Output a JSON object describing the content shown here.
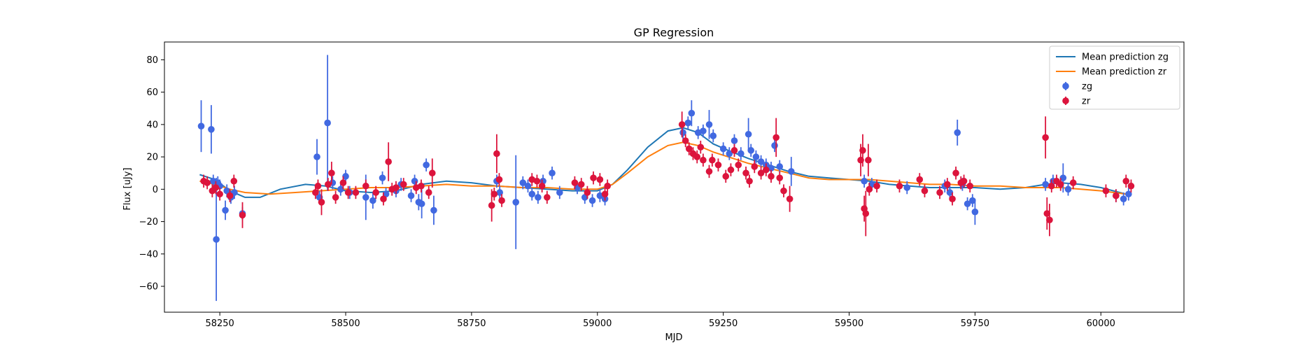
{
  "chart_data": {
    "type": "scatter",
    "title": "GP Regression",
    "xlabel": "MJD",
    "ylabel": "Flux [uJy]",
    "xlim": [
      58140,
      60165
    ],
    "ylim": [
      -76,
      91
    ],
    "xticks": [
      58250,
      58500,
      58750,
      59000,
      59250,
      59500,
      59750,
      60000
    ],
    "yticks": [
      -60,
      -40,
      -20,
      0,
      20,
      40,
      60,
      80
    ],
    "legend_position": "top-right",
    "grid": false,
    "lines": [
      {
        "name": "Mean prediction zg",
        "color": "#1f77b4",
        "x": [
          58210,
          58240,
          58270,
          58300,
          58330,
          58370,
          58420,
          58460,
          58500,
          58550,
          58600,
          58650,
          58700,
          58750,
          58800,
          58850,
          58900,
          58950,
          59000,
          59030,
          59060,
          59100,
          59140,
          59170,
          59200,
          59230,
          59260,
          59300,
          59340,
          59380,
          59420,
          59460,
          59500,
          59540,
          59580,
          59620,
          59660,
          59700,
          59750,
          59800,
          59850,
          59890,
          59920,
          59960,
          60000,
          60050
        ],
        "y": [
          9,
          6,
          -1,
          -5,
          -5,
          0,
          3,
          2,
          -1,
          -2,
          -1,
          3,
          5,
          4,
          2,
          1,
          0,
          -1,
          -1,
          3,
          12,
          26,
          36,
          38,
          35,
          28,
          24,
          19,
          15,
          11,
          8,
          7,
          6,
          5,
          3,
          2,
          1,
          1,
          1,
          0,
          1,
          3,
          4,
          3,
          1,
          -3
        ]
      },
      {
        "name": "Mean prediction zr",
        "color": "#ff7f0e",
        "x": [
          58210,
          58240,
          58270,
          58300,
          58350,
          58400,
          58450,
          58500,
          58550,
          58600,
          58650,
          58700,
          58750,
          58800,
          58850,
          58900,
          58950,
          59000,
          59030,
          59060,
          59100,
          59140,
          59170,
          59200,
          59230,
          59260,
          59300,
          59340,
          59380,
          59420,
          59460,
          59500,
          59540,
          59580,
          59620,
          59660,
          59700,
          59750,
          59800,
          59850,
          59890,
          59920,
          59960,
          60000,
          60050
        ],
        "y": [
          5,
          3,
          0,
          -2,
          -3,
          -2,
          -1,
          0,
          1,
          1,
          2,
          3,
          2,
          2,
          1,
          1,
          0,
          0,
          3,
          10,
          20,
          27,
          29,
          27,
          23,
          20,
          16,
          13,
          10,
          7,
          6,
          6,
          6,
          5,
          4,
          3,
          3,
          2,
          2,
          1,
          1,
          1,
          0,
          -1,
          -3
        ]
      }
    ],
    "series": [
      {
        "name": "zg",
        "color": "#4169e1",
        "points": [
          [
            58213,
            39,
            16
          ],
          [
            58233,
            37,
            15
          ],
          [
            58237,
            5,
            4
          ],
          [
            58243,
            -31,
            38
          ],
          [
            58246,
            4,
            4
          ],
          [
            58250,
            2,
            4
          ],
          [
            58261,
            -13,
            6
          ],
          [
            58264,
            -1,
            4
          ],
          [
            58272,
            -5,
            4
          ],
          [
            58279,
            -2,
            4
          ],
          [
            58295,
            -15,
            4
          ],
          [
            58443,
            20,
            11
          ],
          [
            58448,
            -5,
            4
          ],
          [
            58464,
            41,
            42
          ],
          [
            58474,
            4,
            4
          ],
          [
            58490,
            0,
            4
          ],
          [
            58500,
            8,
            4
          ],
          [
            58508,
            -2,
            4
          ],
          [
            58540,
            -5,
            14
          ],
          [
            58554,
            -7,
            5
          ],
          [
            58573,
            7,
            4
          ],
          [
            58580,
            -3,
            4
          ],
          [
            58600,
            -1,
            4
          ],
          [
            58610,
            3,
            4
          ],
          [
            58630,
            -4,
            4
          ],
          [
            58637,
            5,
            4
          ],
          [
            58645,
            -8,
            5
          ],
          [
            58651,
            -9,
            9
          ],
          [
            58660,
            15,
            4
          ],
          [
            58675,
            -13,
            9
          ],
          [
            58800,
            5,
            4
          ],
          [
            58806,
            -2,
            4
          ],
          [
            58838,
            -8,
            29
          ],
          [
            58852,
            4,
            4
          ],
          [
            58862,
            2,
            4
          ],
          [
            58870,
            -3,
            4
          ],
          [
            58882,
            -5,
            4
          ],
          [
            58892,
            5,
            4
          ],
          [
            58910,
            10,
            4
          ],
          [
            58925,
            -2,
            4
          ],
          [
            58960,
            1,
            4
          ],
          [
            58975,
            -5,
            4
          ],
          [
            58990,
            -7,
            4
          ],
          [
            59005,
            -4,
            4
          ],
          [
            59015,
            -6,
            4
          ],
          [
            59170,
            35,
            4
          ],
          [
            59180,
            41,
            4
          ],
          [
            59187,
            47,
            8
          ],
          [
            59200,
            35,
            4
          ],
          [
            59210,
            36,
            4
          ],
          [
            59222,
            40,
            9
          ],
          [
            59230,
            33,
            4
          ],
          [
            59250,
            25,
            4
          ],
          [
            59262,
            22,
            4
          ],
          [
            59272,
            30,
            4
          ],
          [
            59285,
            22,
            4
          ],
          [
            59300,
            34,
            10
          ],
          [
            59305,
            24,
            4
          ],
          [
            59315,
            20,
            4
          ],
          [
            59325,
            17,
            4
          ],
          [
            59335,
            15,
            4
          ],
          [
            59345,
            13,
            4
          ],
          [
            59352,
            27,
            4
          ],
          [
            59362,
            14,
            4
          ],
          [
            59385,
            11,
            9
          ],
          [
            59530,
            5,
            4
          ],
          [
            59545,
            3,
            4
          ],
          [
            59615,
            1,
            4
          ],
          [
            59690,
            2,
            4
          ],
          [
            59700,
            -2,
            4
          ],
          [
            59715,
            35,
            8
          ],
          [
            59725,
            3,
            4
          ],
          [
            59735,
            -9,
            4
          ],
          [
            59745,
            -7,
            4
          ],
          [
            59750,
            -14,
            8
          ],
          [
            59890,
            3,
            4
          ],
          [
            59905,
            5,
            4
          ],
          [
            59925,
            7,
            9
          ],
          [
            59935,
            0,
            4
          ],
          [
            60030,
            -4,
            4
          ],
          [
            60045,
            -6,
            4
          ],
          [
            60055,
            -3,
            4
          ]
        ]
      },
      {
        "name": "zr",
        "color": "#dc143c",
        "points": [
          [
            58218,
            5,
            4
          ],
          [
            58225,
            4,
            4
          ],
          [
            58235,
            -1,
            4
          ],
          [
            58242,
            1,
            4
          ],
          [
            58250,
            -3,
            4
          ],
          [
            58270,
            -4,
            4
          ],
          [
            58278,
            5,
            4
          ],
          [
            58295,
            -16,
            8
          ],
          [
            58440,
            -2,
            4
          ],
          [
            58445,
            2,
            4
          ],
          [
            58452,
            -8,
            8
          ],
          [
            58465,
            3,
            4
          ],
          [
            58472,
            10,
            7
          ],
          [
            58480,
            -5,
            4
          ],
          [
            58495,
            4,
            4
          ],
          [
            58505,
            -2,
            4
          ],
          [
            58520,
            -2,
            4
          ],
          [
            58540,
            2,
            4
          ],
          [
            58560,
            -2,
            4
          ],
          [
            58575,
            -6,
            4
          ],
          [
            58585,
            17,
            12
          ],
          [
            58592,
            0,
            4
          ],
          [
            58600,
            1,
            4
          ],
          [
            58615,
            3,
            4
          ],
          [
            58640,
            1,
            4
          ],
          [
            58650,
            2,
            4
          ],
          [
            58665,
            -2,
            4
          ],
          [
            58672,
            10,
            9
          ],
          [
            58790,
            -10,
            10
          ],
          [
            58795,
            -3,
            4
          ],
          [
            58800,
            22,
            12
          ],
          [
            58805,
            6,
            4
          ],
          [
            58810,
            -7,
            4
          ],
          [
            58870,
            6,
            4
          ],
          [
            58880,
            5,
            4
          ],
          [
            58890,
            2,
            4
          ],
          [
            58900,
            -5,
            4
          ],
          [
            58955,
            4,
            4
          ],
          [
            58968,
            3,
            4
          ],
          [
            58980,
            -2,
            4
          ],
          [
            58992,
            7,
            4
          ],
          [
            59005,
            6,
            4
          ],
          [
            59015,
            -3,
            4
          ],
          [
            59020,
            2,
            4
          ],
          [
            59168,
            40,
            8
          ],
          [
            59175,
            30,
            4
          ],
          [
            59182,
            25,
            4
          ],
          [
            59190,
            22,
            4
          ],
          [
            59198,
            20,
            4
          ],
          [
            59205,
            26,
            4
          ],
          [
            59210,
            18,
            4
          ],
          [
            59222,
            11,
            4
          ],
          [
            59228,
            18,
            4
          ],
          [
            59240,
            15,
            4
          ],
          [
            59255,
            8,
            4
          ],
          [
            59265,
            12,
            4
          ],
          [
            59272,
            24,
            4
          ],
          [
            59280,
            15,
            4
          ],
          [
            59295,
            10,
            4
          ],
          [
            59302,
            5,
            4
          ],
          [
            59312,
            14,
            4
          ],
          [
            59325,
            10,
            4
          ],
          [
            59335,
            12,
            4
          ],
          [
            59345,
            8,
            4
          ],
          [
            59355,
            32,
            12
          ],
          [
            59362,
            7,
            4
          ],
          [
            59370,
            -1,
            4
          ],
          [
            59382,
            -6,
            8
          ],
          [
            59523,
            18,
            10
          ],
          [
            59527,
            24,
            10
          ],
          [
            59530,
            -12,
            8
          ],
          [
            59533,
            -15,
            14
          ],
          [
            59538,
            18,
            10
          ],
          [
            59540,
            0,
            4
          ],
          [
            59555,
            2,
            4
          ],
          [
            59600,
            2,
            4
          ],
          [
            59640,
            6,
            4
          ],
          [
            59650,
            -1,
            4
          ],
          [
            59680,
            -2,
            4
          ],
          [
            59695,
            3,
            4
          ],
          [
            59705,
            -6,
            4
          ],
          [
            59712,
            10,
            4
          ],
          [
            59722,
            4,
            4
          ],
          [
            59728,
            5,
            4
          ],
          [
            59740,
            2,
            4
          ],
          [
            59890,
            32,
            13
          ],
          [
            59893,
            -15,
            10
          ],
          [
            59898,
            -19,
            10
          ],
          [
            59902,
            2,
            4
          ],
          [
            59912,
            5,
            4
          ],
          [
            59920,
            3,
            4
          ],
          [
            59945,
            4,
            4
          ],
          [
            60010,
            -1,
            4
          ],
          [
            60030,
            -4,
            4
          ],
          [
            60050,
            5,
            4
          ],
          [
            60060,
            2,
            4
          ]
        ]
      }
    ]
  }
}
